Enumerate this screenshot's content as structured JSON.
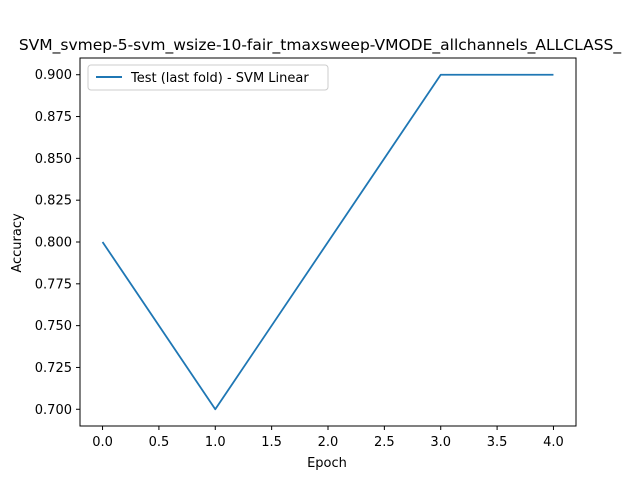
{
  "chart_data": {
    "type": "line",
    "title": "SVM_svmep-5-svm_wsize-10-fair_tmaxsweep-VMODE_allchannels_ALLCLASS_",
    "xlabel": "Epoch",
    "ylabel": "Accuracy",
    "xlim": [
      -0.2,
      4.2
    ],
    "ylim": [
      0.69,
      0.91
    ],
    "xticks": [
      0.0,
      0.5,
      1.0,
      1.5,
      2.0,
      2.5,
      3.0,
      3.5,
      4.0
    ],
    "yticks": [
      0.7,
      0.725,
      0.75,
      0.775,
      0.8,
      0.825,
      0.85,
      0.875,
      0.9
    ],
    "grid": false,
    "legend_position": "top-left",
    "series": [
      {
        "name": "Test (last fold) - SVM Linear",
        "color": "#1f77b4",
        "x": [
          0,
          1,
          2,
          3,
          4
        ],
        "y": [
          0.8,
          0.7,
          0.8,
          0.9,
          0.9
        ]
      }
    ]
  }
}
